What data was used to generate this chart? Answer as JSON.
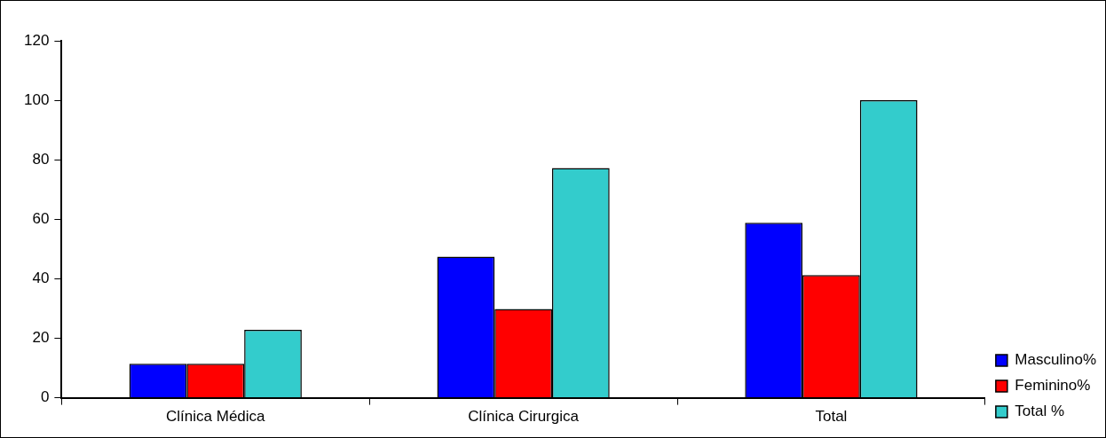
{
  "chart_data": {
    "type": "bar",
    "categories": [
      "Clínica Médica",
      "Clínica Cirurgica",
      "Total"
    ],
    "series": [
      {
        "name": "Masculino%",
        "color": "#0000ff",
        "values": [
          11.4,
          47.4,
          58.8
        ]
      },
      {
        "name": "Feminino%",
        "color": "#ff0000",
        "values": [
          11.4,
          29.8,
          41.2
        ]
      },
      {
        "name": "Total %",
        "color": "#33cccc",
        "values": [
          22.8,
          77.2,
          100
        ]
      }
    ],
    "ylim": [
      0,
      120
    ],
    "yticks": [
      0,
      20,
      40,
      60,
      80,
      100,
      120
    ],
    "grid": false,
    "legend": "bottom right"
  }
}
